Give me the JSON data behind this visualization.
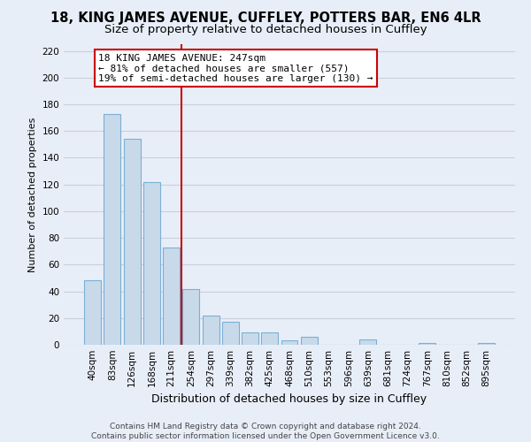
{
  "title1": "18, KING JAMES AVENUE, CUFFLEY, POTTERS BAR, EN6 4LR",
  "title2": "Size of property relative to detached houses in Cuffley",
  "xlabel": "Distribution of detached houses by size in Cuffley",
  "ylabel": "Number of detached properties",
  "bar_labels": [
    "40sqm",
    "83sqm",
    "126sqm",
    "168sqm",
    "211sqm",
    "254sqm",
    "297sqm",
    "339sqm",
    "382sqm",
    "425sqm",
    "468sqm",
    "510sqm",
    "553sqm",
    "596sqm",
    "639sqm",
    "681sqm",
    "724sqm",
    "767sqm",
    "810sqm",
    "852sqm",
    "895sqm"
  ],
  "bar_values": [
    48,
    173,
    154,
    122,
    73,
    42,
    22,
    17,
    9,
    9,
    3,
    6,
    0,
    0,
    4,
    0,
    0,
    1,
    0,
    0,
    1
  ],
  "bar_color": "#c8daea",
  "bar_edge_color": "#7bafd4",
  "vline_x_idx": 5,
  "vline_color": "#cc0000",
  "annotation_title": "18 KING JAMES AVENUE: 247sqm",
  "annotation_line1": "← 81% of detached houses are smaller (557)",
  "annotation_line2": "19% of semi-detached houses are larger (130) →",
  "annotation_box_color": "#ffffff",
  "annotation_box_edge": "#cc0000",
  "ylim": [
    0,
    225
  ],
  "yticks": [
    0,
    20,
    40,
    60,
    80,
    100,
    120,
    140,
    160,
    180,
    200,
    220
  ],
  "footer1": "Contains HM Land Registry data © Crown copyright and database right 2024.",
  "footer2": "Contains public sector information licensed under the Open Government Licence v3.0.",
  "bg_color": "#e8eef8",
  "grid_color": "#c8d0dc",
  "title1_fontsize": 10.5,
  "title2_fontsize": 9.5,
  "ylabel_fontsize": 8,
  "xlabel_fontsize": 9,
  "tick_fontsize": 7.5,
  "annotation_fontsize": 8,
  "footer_fontsize": 6.5
}
